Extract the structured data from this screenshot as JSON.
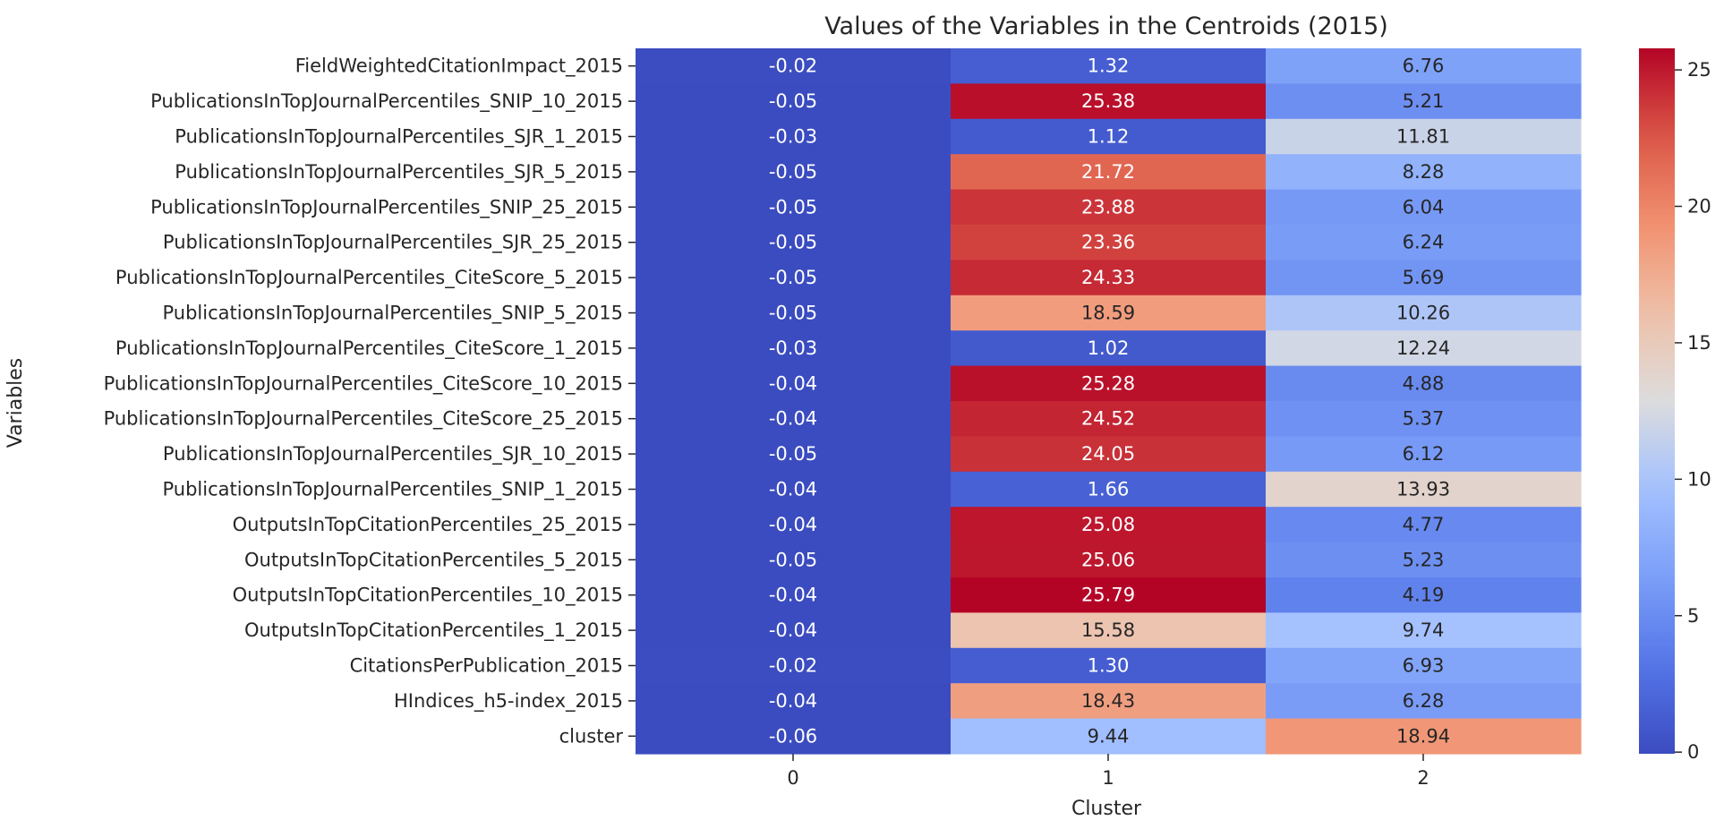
{
  "chart_data": {
    "type": "heatmap",
    "title": "Values of the Variables in the Centroids (2015)",
    "xlabel": "Cluster",
    "ylabel": "Variables",
    "x_categories": [
      "0",
      "1",
      "2"
    ],
    "y_categories": [
      "FieldWeightedCitationImpact_2015",
      "PublicationsInTopJournalPercentiles_SNIP_10_2015",
      "PublicationsInTopJournalPercentiles_SJR_1_2015",
      "PublicationsInTopJournalPercentiles_SJR_5_2015",
      "PublicationsInTopJournalPercentiles_SNIP_25_2015",
      "PublicationsInTopJournalPercentiles_SJR_25_2015",
      "PublicationsInTopJournalPercentiles_CiteScore_5_2015",
      "PublicationsInTopJournalPercentiles_SNIP_5_2015",
      "PublicationsInTopJournalPercentiles_CiteScore_1_2015",
      "PublicationsInTopJournalPercentiles_CiteScore_10_2015",
      "PublicationsInTopJournalPercentiles_CiteScore_25_2015",
      "PublicationsInTopJournalPercentiles_SJR_10_2015",
      "PublicationsInTopJournalPercentiles_SNIP_1_2015",
      "OutputsInTopCitationPercentiles_25_2015",
      "OutputsInTopCitationPercentiles_5_2015",
      "OutputsInTopCitationPercentiles_10_2015",
      "OutputsInTopCitationPercentiles_1_2015",
      "CitationsPerPublication_2015",
      "HIndices_h5-index_2015",
      "cluster"
    ],
    "values": [
      [
        -0.02,
        1.32,
        6.76
      ],
      [
        -0.05,
        25.38,
        5.21
      ],
      [
        -0.03,
        1.12,
        11.81
      ],
      [
        -0.05,
        21.72,
        8.28
      ],
      [
        -0.05,
        23.88,
        6.04
      ],
      [
        -0.05,
        23.36,
        6.24
      ],
      [
        -0.05,
        24.33,
        5.69
      ],
      [
        -0.05,
        18.59,
        10.26
      ],
      [
        -0.03,
        1.02,
        12.24
      ],
      [
        -0.04,
        25.28,
        4.88
      ],
      [
        -0.04,
        24.52,
        5.37
      ],
      [
        -0.05,
        24.05,
        6.12
      ],
      [
        -0.04,
        1.66,
        13.93
      ],
      [
        -0.04,
        25.08,
        4.77
      ],
      [
        -0.05,
        25.06,
        5.23
      ],
      [
        -0.04,
        25.79,
        4.19
      ],
      [
        -0.04,
        15.58,
        9.74
      ],
      [
        -0.02,
        1.3,
        6.93
      ],
      [
        -0.04,
        18.43,
        6.28
      ],
      [
        -0.06,
        9.44,
        18.94
      ]
    ],
    "cell_labels": [
      [
        "-0.02",
        "1.32",
        "6.76"
      ],
      [
        "-0.05",
        "25.38",
        "5.21"
      ],
      [
        "-0.03",
        "1.12",
        "11.81"
      ],
      [
        "-0.05",
        "21.72",
        "8.28"
      ],
      [
        "-0.05",
        "23.88",
        "6.04"
      ],
      [
        "-0.05",
        "23.36",
        "6.24"
      ],
      [
        "-0.05",
        "24.33",
        "5.69"
      ],
      [
        "-0.05",
        "18.59",
        "10.26"
      ],
      [
        "-0.03",
        "1.02",
        "12.24"
      ],
      [
        "-0.04",
        "25.28",
        "4.88"
      ],
      [
        "-0.04",
        "24.52",
        "5.37"
      ],
      [
        "-0.05",
        "24.05",
        "6.12"
      ],
      [
        "-0.04",
        "1.66",
        "13.93"
      ],
      [
        "-0.04",
        "25.08",
        "4.77"
      ],
      [
        "-0.05",
        "25.06",
        "5.23"
      ],
      [
        "-0.04",
        "25.79",
        "4.19"
      ],
      [
        "-0.04",
        "15.58",
        "9.74"
      ],
      [
        "-0.02",
        "1.30",
        "6.93"
      ],
      [
        "-0.04",
        "18.43",
        "6.28"
      ],
      [
        "-0.06",
        "9.44",
        "18.94"
      ]
    ],
    "colormap": "coolwarm",
    "colorbar": {
      "range": [
        -0.06,
        25.79
      ],
      "ticks": [
        0,
        5,
        10,
        15,
        20,
        25
      ],
      "tick_labels": [
        "0",
        "5",
        "10",
        "15",
        "20",
        "25"
      ]
    },
    "colors": {
      "low": "#3b4cc0",
      "mid": "#dddddd",
      "high": "#b40426",
      "text_dark": "#262626",
      "text_light": "#ffffff"
    }
  }
}
